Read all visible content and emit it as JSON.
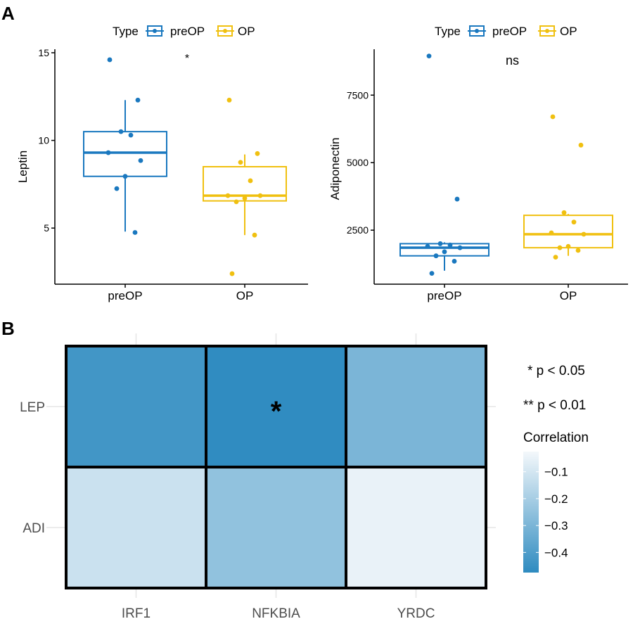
{
  "panels": {
    "a_label": "A",
    "b_label": "B"
  },
  "colors": {
    "preOP": "#1a78bf",
    "OP": "#f0c010",
    "heat_low": "#2e8bc0",
    "heat_high": "#f4f8fb",
    "axis": "#000000",
    "grid": "#e6e6e6"
  },
  "legend_a": {
    "title": "Type",
    "items": [
      "preOP",
      "OP"
    ]
  },
  "chart_data": [
    {
      "type": "box",
      "panel": "A-left",
      "ylabel": "Leptin",
      "xlabel": "",
      "categories": [
        "preOP",
        "OP"
      ],
      "ylim": [
        1.8,
        15.2
      ],
      "yticks": [
        5,
        10,
        15
      ],
      "significance": "*",
      "boxes": [
        {
          "name": "preOP",
          "q1": 7.95,
          "median": 9.3,
          "q3": 10.5,
          "whisker_low": 4.8,
          "whisker_high": 12.3,
          "points": [
            14.6,
            12.3,
            10.5,
            10.3,
            9.3,
            8.85,
            7.95,
            7.25,
            4.75
          ]
        },
        {
          "name": "OP",
          "q1": 6.55,
          "median": 6.85,
          "q3": 8.5,
          "whisker_low": 4.6,
          "whisker_high": 9.2,
          "points": [
            12.3,
            9.25,
            8.75,
            7.7,
            6.85,
            6.85,
            6.7,
            6.5,
            4.6,
            2.4
          ]
        }
      ]
    },
    {
      "type": "box",
      "panel": "A-right",
      "ylabel": "Adiponectin",
      "xlabel": "",
      "categories": [
        "preOP",
        "OP"
      ],
      "ylim": [
        500,
        9200
      ],
      "yticks": [
        2500,
        5000,
        7500
      ],
      "significance": "ns",
      "boxes": [
        {
          "name": "preOP",
          "q1": 1550,
          "median": 1850,
          "q3": 2000,
          "whisker_low": 1000,
          "whisker_high": 2050,
          "points": [
            8950,
            3650,
            2000,
            1950,
            1900,
            1850,
            1700,
            1550,
            1350,
            900
          ]
        },
        {
          "name": "OP",
          "q1": 1850,
          "median": 2350,
          "q3": 3050,
          "whisker_low": 1550,
          "whisker_high": 3100,
          "points": [
            6700,
            5650,
            3150,
            2800,
            2400,
            2350,
            1900,
            1850,
            1750,
            1500
          ]
        }
      ]
    },
    {
      "type": "heatmap",
      "panel": "B",
      "x": [
        "IRF1",
        "NFKBIA",
        "YRDC"
      ],
      "y": [
        "LEP",
        "ADI"
      ],
      "values": [
        [
          -0.43,
          -0.47,
          -0.3
        ],
        [
          -0.12,
          -0.25,
          -0.05
        ]
      ],
      "annotations": [
        [
          "",
          "*",
          ""
        ],
        [
          "",
          "",
          ""
        ]
      ],
      "legend_title": "Correlation",
      "legend_ticks": [
        -0.1,
        -0.2,
        -0.3,
        -0.4
      ],
      "legend_range": [
        -0.475,
        -0.025
      ],
      "sig_notes": [
        "* p < 0.05",
        "** p < 0.01"
      ]
    }
  ]
}
